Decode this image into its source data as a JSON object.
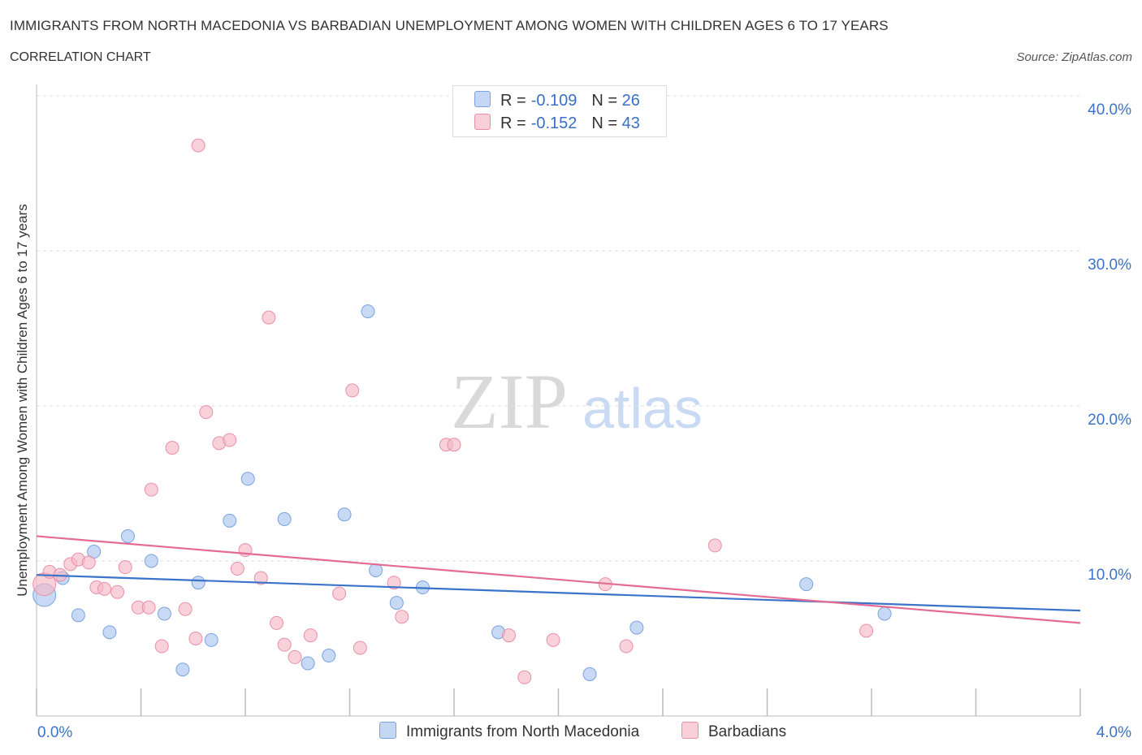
{
  "header": {
    "title": "IMMIGRANTS FROM NORTH MACEDONIA VS BARBADIAN UNEMPLOYMENT AMONG WOMEN WITH CHILDREN AGES 6 TO 17 YEARS",
    "subtitle": "CORRELATION CHART",
    "source": "Source: ZipAtlas.com"
  },
  "watermark": {
    "zip": "ZIP",
    "atlas": "atlas"
  },
  "legend": {
    "series": [
      {
        "r_label": "R =",
        "r_value": "-0.109",
        "n_label": "N =",
        "n_value": "26",
        "color": "#a9c4ee"
      },
      {
        "r_label": "R =",
        "r_value": "-0.152",
        "n_label": "N =",
        "n_value": "43",
        "color": "#f5b8c8"
      }
    ]
  },
  "bottom_legend": {
    "items": [
      {
        "label": "Immigrants from North Macedonia",
        "color": "#a9c4ee"
      },
      {
        "label": "Barbadians",
        "color": "#f5b8c8"
      }
    ]
  },
  "chart_data": {
    "type": "scatter",
    "title": "IMMIGRANTS FROM NORTH MACEDONIA VS BARBADIAN UNEMPLOYMENT AMONG WOMEN WITH CHILDREN AGES 6 TO 17 YEARS",
    "ylabel": "Unemployment Among Women with Children Ages 6 to 17 years",
    "xlabel": "",
    "xlim": [
      0,
      4.0
    ],
    "ylim": [
      0,
      40.0
    ],
    "x_ticks": [
      0.0,
      4.0
    ],
    "x_tick_labels": [
      "0.0%",
      "4.0%"
    ],
    "y_ticks": [
      10,
      20,
      30,
      40
    ],
    "y_tick_labels": [
      "10.0%",
      "20.0%",
      "30.0%",
      "40.0%"
    ],
    "grid": true,
    "series": [
      {
        "name": "Immigrants from North Macedonia",
        "color": "#a9c4ee",
        "stroke": "#7aa3df",
        "trend_color": "#3a73c9",
        "trend": {
          "x": [
            0.0,
            4.0
          ],
          "y": [
            9.1,
            6.8
          ]
        },
        "points": [
          {
            "x": 0.03,
            "y": 7.8
          },
          {
            "x": 0.1,
            "y": 8.9
          },
          {
            "x": 0.16,
            "y": 6.5
          },
          {
            "x": 0.22,
            "y": 10.6
          },
          {
            "x": 0.28,
            "y": 5.4
          },
          {
            "x": 0.35,
            "y": 11.6
          },
          {
            "x": 0.44,
            "y": 10.0
          },
          {
            "x": 0.49,
            "y": 6.6
          },
          {
            "x": 0.56,
            "y": 3.0
          },
          {
            "x": 0.62,
            "y": 8.6
          },
          {
            "x": 0.67,
            "y": 4.9
          },
          {
            "x": 0.74,
            "y": 12.6
          },
          {
            "x": 0.81,
            "y": 15.3
          },
          {
            "x": 0.95,
            "y": 12.7
          },
          {
            "x": 1.04,
            "y": 3.4
          },
          {
            "x": 1.12,
            "y": 3.9
          },
          {
            "x": 1.18,
            "y": 13.0
          },
          {
            "x": 1.27,
            "y": 26.1
          },
          {
            "x": 1.3,
            "y": 9.4
          },
          {
            "x": 1.38,
            "y": 7.3
          },
          {
            "x": 1.48,
            "y": 8.3
          },
          {
            "x": 1.77,
            "y": 5.4
          },
          {
            "x": 2.12,
            "y": 2.7
          },
          {
            "x": 2.3,
            "y": 5.7
          },
          {
            "x": 2.95,
            "y": 8.5
          },
          {
            "x": 3.25,
            "y": 6.6
          }
        ]
      },
      {
        "name": "Barbadians",
        "color": "#f5b8c8",
        "stroke": "#ea8fa8",
        "trend_color": "#e46b94",
        "trend": {
          "x": [
            0.0,
            4.0
          ],
          "y": [
            11.6,
            6.0
          ]
        },
        "points": [
          {
            "x": 0.03,
            "y": 8.5
          },
          {
            "x": 0.05,
            "y": 9.3
          },
          {
            "x": 0.09,
            "y": 9.1
          },
          {
            "x": 0.13,
            "y": 9.8
          },
          {
            "x": 0.16,
            "y": 10.1
          },
          {
            "x": 0.2,
            "y": 9.9
          },
          {
            "x": 0.23,
            "y": 8.3
          },
          {
            "x": 0.26,
            "y": 8.2
          },
          {
            "x": 0.31,
            "y": 8.0
          },
          {
            "x": 0.34,
            "y": 9.6
          },
          {
            "x": 0.39,
            "y": 7.0
          },
          {
            "x": 0.43,
            "y": 7.0
          },
          {
            "x": 0.44,
            "y": 14.6
          },
          {
            "x": 0.48,
            "y": 4.5
          },
          {
            "x": 0.52,
            "y": 17.3
          },
          {
            "x": 0.57,
            "y": 6.9
          },
          {
            "x": 0.61,
            "y": 5.0
          },
          {
            "x": 0.62,
            "y": 36.8
          },
          {
            "x": 0.65,
            "y": 19.6
          },
          {
            "x": 0.7,
            "y": 17.6
          },
          {
            "x": 0.74,
            "y": 17.8
          },
          {
            "x": 0.77,
            "y": 9.5
          },
          {
            "x": 0.8,
            "y": 10.7
          },
          {
            "x": 0.86,
            "y": 8.9
          },
          {
            "x": 0.89,
            "y": 25.7
          },
          {
            "x": 0.92,
            "y": 6.0
          },
          {
            "x": 0.95,
            "y": 4.6
          },
          {
            "x": 0.99,
            "y": 3.8
          },
          {
            "x": 1.05,
            "y": 5.2
          },
          {
            "x": 1.16,
            "y": 7.9
          },
          {
            "x": 1.21,
            "y": 21.0
          },
          {
            "x": 1.24,
            "y": 4.4
          },
          {
            "x": 1.37,
            "y": 8.6
          },
          {
            "x": 1.4,
            "y": 6.4
          },
          {
            "x": 1.57,
            "y": 17.5
          },
          {
            "x": 1.6,
            "y": 17.5
          },
          {
            "x": 1.81,
            "y": 5.2
          },
          {
            "x": 1.87,
            "y": 2.5
          },
          {
            "x": 1.98,
            "y": 4.9
          },
          {
            "x": 2.18,
            "y": 8.5
          },
          {
            "x": 2.26,
            "y": 4.5
          },
          {
            "x": 2.6,
            "y": 11.0
          },
          {
            "x": 3.18,
            "y": 5.5
          }
        ]
      }
    ]
  }
}
